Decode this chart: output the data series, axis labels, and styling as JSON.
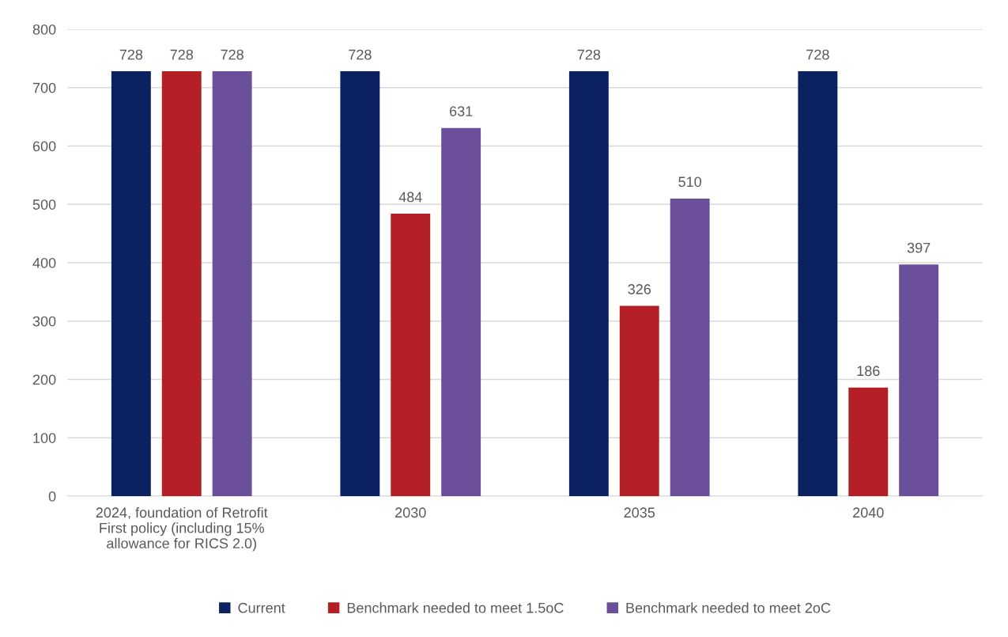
{
  "chart_data": {
    "type": "bar",
    "categories": [
      "2024, foundation of Retrofit\nFirst policy (including 15%\nallowance for RICS 2.0)",
      "2030",
      "2035",
      "2040"
    ],
    "series": [
      {
        "name": "Current",
        "color": "#0b2161",
        "values": [
          728,
          728,
          728,
          728
        ]
      },
      {
        "name": "Benchmark needed to meet 1.5oC",
        "color": "#b31f24",
        "values": [
          728,
          484,
          326,
          186
        ]
      },
      {
        "name": "Benchmark needed to meet 2oC",
        "color": "#6b4f9a",
        "values": [
          728,
          631,
          510,
          397
        ]
      }
    ],
    "ylim": [
      0,
      800
    ],
    "yticks": [
      0,
      100,
      200,
      300,
      400,
      500,
      600,
      700,
      800
    ],
    "grid": "y",
    "legend": "bottom",
    "data_labels": true
  }
}
